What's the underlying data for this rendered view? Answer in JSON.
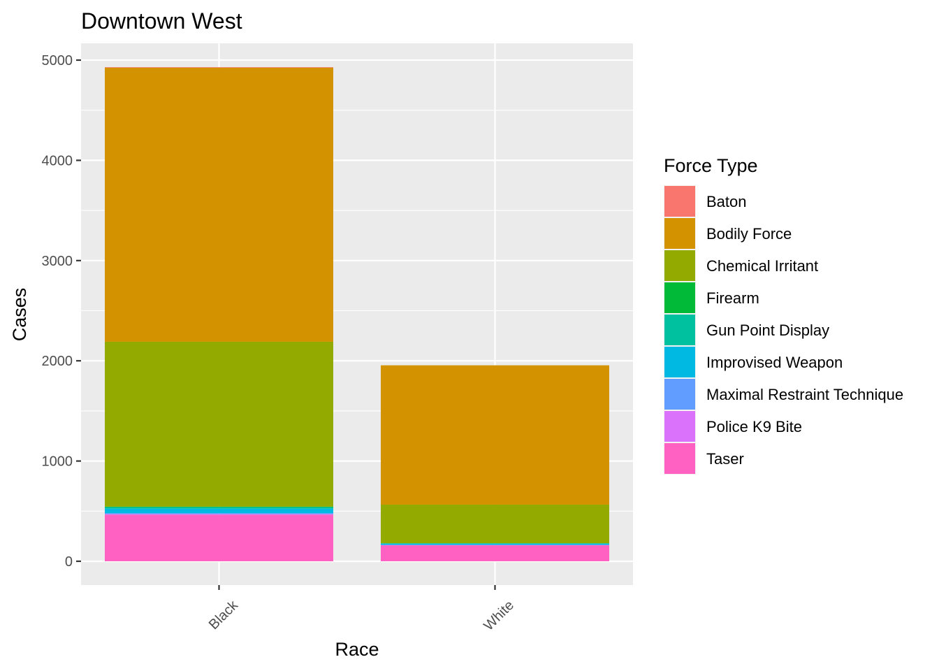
{
  "chart_data": {
    "type": "bar",
    "stacked": true,
    "title": "Downtown West",
    "xlabel": "Race",
    "ylabel": "Cases",
    "categories": [
      "Black",
      "White"
    ],
    "ylim": [
      0,
      5000
    ],
    "yticks": [
      "0",
      "1000",
      "2000",
      "3000",
      "4000",
      "5000"
    ],
    "grid": true,
    "legend": {
      "title": "Force Type",
      "position": "right"
    },
    "series": [
      {
        "name": "Baton",
        "color": "#F8766D",
        "values": [
          5,
          0
        ]
      },
      {
        "name": "Bodily Force",
        "color": "#D39200",
        "values": [
          2735,
          1390
        ]
      },
      {
        "name": "Chemical Irritant",
        "color": "#93AA00",
        "values": [
          1645,
          385
        ]
      },
      {
        "name": "Firearm",
        "color": "#00BA38",
        "values": [
          5,
          0
        ]
      },
      {
        "name": "Gun Point Display",
        "color": "#00C19F",
        "values": [
          15,
          5
        ]
      },
      {
        "name": "Improvised Weapon",
        "color": "#00B9E3",
        "values": [
          45,
          10
        ]
      },
      {
        "name": "Maximal Restraint Technique",
        "color": "#619CFF",
        "values": [
          10,
          5
        ]
      },
      {
        "name": "Police K9 Bite",
        "color": "#DB72FB",
        "values": [
          5,
          0
        ]
      },
      {
        "name": "Taser",
        "color": "#FF61C3",
        "values": [
          465,
          160
        ]
      }
    ]
  }
}
